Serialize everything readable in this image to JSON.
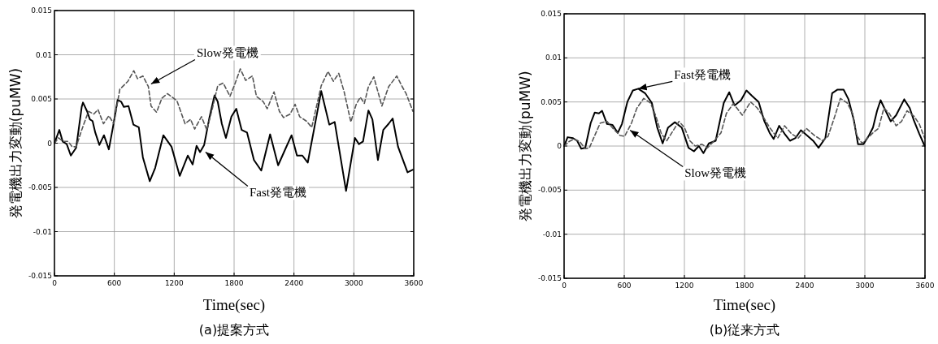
{
  "chart_data": [
    {
      "type": "line",
      "title": "(a)提案方式",
      "xlabel": "Time(sec)",
      "ylabel": "発電機出力変動(puMW)",
      "xlim": [
        0,
        3600
      ],
      "xticks": [
        0,
        600,
        1200,
        1800,
        2400,
        3000,
        3600
      ],
      "ylim": [
        -0.015,
        0.015
      ],
      "yticks": [
        -0.015,
        -0.01,
        -0.005,
        0,
        0.005,
        0.01,
        0.015
      ],
      "grid": true,
      "annotations": [
        {
          "text": "Slow発電機",
          "x": 968,
          "y": 0.0067
        },
        {
          "text": "Fast発電機",
          "x": 1514,
          "y": -0.001
        }
      ],
      "series": [
        {
          "color": "#000000",
          "line_style": "solid",
          "x": [
            0,
            49,
            82,
            123,
            164,
            218,
            273,
            286,
            327,
            355,
            382,
            409,
            450,
            496,
            545,
            586,
            633,
            668,
            695,
            742,
            791,
            845,
            886,
            955,
            1009,
            1091,
            1173,
            1255,
            1336,
            1385,
            1424,
            1459,
            1500,
            1555,
            1604,
            1636,
            1677,
            1718,
            1773,
            1822,
            1876,
            1930,
            1999,
            2072,
            2161,
            2241,
            2308,
            2376,
            2430,
            2484,
            2538,
            2605,
            2673,
            2754,
            2808,
            2849,
            2922,
            3011,
            3051,
            3092,
            3146,
            3186,
            3241,
            3295,
            3349,
            3389,
            3443,
            3538,
            3592
          ],
          "values": [
            0,
            0.0015,
            0.0002,
            -0.0001,
            -0.0014,
            -0.0005,
            0.0041,
            0.0046,
            0.0036,
            0.0027,
            0.0025,
            0.0012,
            -0.0002,
            0.0009,
            -0.0007,
            0.0018,
            0.0049,
            0.0047,
            0.0041,
            0.0042,
            0.0021,
            0.0018,
            -0.0016,
            -0.0043,
            -0.0028,
            0.0009,
            -0.0004,
            -0.0037,
            -0.0014,
            -0.0024,
            -0.0003,
            -0.001,
            -0.0002,
            0.003,
            0.0054,
            0.0047,
            0.0022,
            0.0006,
            0.003,
            0.0039,
            0.0015,
            0.0012,
            -0.0019,
            -0.0031,
            0.001,
            -0.0025,
            -0.0008,
            0.0009,
            -0.0014,
            -0.0014,
            -0.0022,
            0.0018,
            0.0059,
            0.0021,
            0.0024,
            -0.0004,
            -0.0054,
            0.0006,
            -0.0001,
            0.0002,
            0.0037,
            0.0027,
            -0.0019,
            0.0015,
            0.0022,
            0.0028,
            -0.0004,
            -0.0033,
            -0.003
          ]
        },
        {
          "color": "#555555",
          "line_style": "dashed",
          "x": [
            0,
            41,
            87,
            136,
            177,
            218,
            273,
            341,
            395,
            436,
            491,
            545,
            595,
            655,
            736,
            795,
            832,
            886,
            941,
            968,
            1023,
            1077,
            1132,
            1227,
            1309,
            1364,
            1405,
            1473,
            1527,
            1582,
            1636,
            1691,
            1759,
            1808,
            1862,
            1916,
            1984,
            2024,
            2092,
            2132,
            2200,
            2254,
            2295,
            2362,
            2411,
            2457,
            2524,
            2578,
            2673,
            2741,
            2795,
            2849,
            2903,
            2970,
            3024,
            3065,
            3105,
            3146,
            3200,
            3281,
            3349,
            3430,
            3484,
            3524,
            3592
          ],
          "values": [
            0,
            0.0006,
            0.0002,
            0.0002,
            -0.0004,
            -0.0004,
            0.0015,
            0.0036,
            0.0033,
            0.0038,
            0.0022,
            0.0031,
            0.0022,
            0.0061,
            0.007,
            0.0082,
            0.0073,
            0.0076,
            0.0064,
            0.0042,
            0.0035,
            0.0051,
            0.0056,
            0.0048,
            0.0022,
            0.0027,
            0.0016,
            0.003,
            0.0015,
            0.0039,
            0.0065,
            0.0068,
            0.0053,
            0.0067,
            0.0084,
            0.0071,
            0.0076,
            0.0053,
            0.0047,
            0.0039,
            0.0058,
            0.0036,
            0.0029,
            0.0033,
            0.0044,
            0.003,
            0.0025,
            0.0018,
            0.0065,
            0.0081,
            0.007,
            0.0079,
            0.0058,
            0.0024,
            0.0044,
            0.0052,
            0.0045,
            0.0064,
            0.0075,
            0.0042,
            0.0064,
            0.0076,
            0.0064,
            0.0056,
            0.0036
          ]
        }
      ]
    },
    {
      "type": "line",
      "title": "(b)従来方式",
      "xlabel": "Time(sec)",
      "ylabel": "発電機出力変動(puMW)",
      "xlim": [
        0,
        3600
      ],
      "xticks": [
        0,
        600,
        1200,
        1800,
        2400,
        3000,
        3600
      ],
      "ylim": [
        -0.015,
        0.015
      ],
      "yticks": [
        -0.015,
        -0.01,
        -0.005,
        0,
        0.005,
        0.01,
        0.015
      ],
      "grid": true,
      "annotations": [
        {
          "text": "Fast発電機",
          "x": 740,
          "y": 0.0065
        },
        {
          "text": "Slow発電機",
          "x": 658,
          "y": 0.0018
        }
      ],
      "series": [
        {
          "color": "#000000",
          "line_style": "solid",
          "x": [
            0,
            35,
            89,
            130,
            171,
            211,
            265,
            306,
            347,
            379,
            428,
            482,
            536,
            577,
            631,
            686,
            740,
            807,
            875,
            929,
            983,
            1037,
            1105,
            1173,
            1241,
            1295,
            1344,
            1390,
            1444,
            1512,
            1593,
            1647,
            1701,
            1765,
            1819,
            1873,
            1941,
            1995,
            2050,
            2090,
            2145,
            2199,
            2253,
            2308,
            2362,
            2403,
            2484,
            2538,
            2606,
            2674,
            2728,
            2788,
            2837,
            2891,
            2932,
            2986,
            3041,
            3081,
            3122,
            3157,
            3203,
            3258,
            3312,
            3393,
            3448,
            3489,
            3543,
            3597
          ],
          "values": [
            0,
            0.001,
            0.0009,
            0.0006,
            -0.0003,
            -0.0002,
            0.0026,
            0.0038,
            0.0037,
            0.004,
            0.0025,
            0.0024,
            0.0015,
            0.0025,
            0.005,
            0.0063,
            0.0065,
            0.006,
            0.0049,
            0.0021,
            0.0003,
            0.0021,
            0.0027,
            0.0021,
            -0.0002,
            -0.0006,
            0,
            -0.0008,
            0.0003,
            0.0006,
            0.0049,
            0.0061,
            0.0046,
            0.0052,
            0.0063,
            0.0057,
            0.005,
            0.0029,
            0.0015,
            0.0008,
            0.0023,
            0.0014,
            0.0006,
            0.0009,
            0.0018,
            0.0014,
            0.0006,
            -0.0002,
            0.0009,
            0.006,
            0.0064,
            0.0064,
            0.0053,
            0.0029,
            0.0002,
            0.0002,
            0.0012,
            0.0021,
            0.004,
            0.0052,
            0.0041,
            0.0028,
            0.0035,
            0.0053,
            0.0043,
            0.0029,
            0.0014,
            0
          ]
        },
        {
          "color": "#555555",
          "line_style": "dashed",
          "x": [
            0,
            49,
            98,
            157,
            211,
            252,
            306,
            360,
            428,
            495,
            558,
            604,
            672,
            726,
            794,
            861,
            915,
            970,
            1024,
            1091,
            1146,
            1200,
            1254,
            1308,
            1376,
            1430,
            1498,
            1565,
            1619,
            1687,
            1724,
            1778,
            1860,
            1928,
            1982,
            2050,
            2131,
            2199,
            2267,
            2335,
            2416,
            2497,
            2579,
            2633,
            2701,
            2756,
            2823,
            2878,
            2918,
            2973,
            3027,
            3081,
            3136,
            3190,
            3244,
            3312,
            3366,
            3421,
            3489,
            3543,
            3597
          ],
          "values": [
            0,
            0.0005,
            0.0008,
            0.0005,
            -0.0003,
            -0.0002,
            0.0012,
            0.0026,
            0.0028,
            0.0019,
            0.0012,
            0.0011,
            0.0026,
            0.0043,
            0.0054,
            0.0049,
            0.0034,
            0.0014,
            0.0006,
            0.0018,
            0.0028,
            0.0021,
            0.0006,
            0,
            0.0002,
            -0.0002,
            0.0006,
            0.0015,
            0.0037,
            0.0048,
            0.0043,
            0.0035,
            0.005,
            0.0043,
            0.0034,
            0.0021,
            0.0009,
            0.0023,
            0.0014,
            0.0009,
            0.002,
            0.0012,
            0.0006,
            0.0011,
            0.0034,
            0.0054,
            0.0049,
            0.0037,
            0.0012,
            0.0003,
            0.0009,
            0.0015,
            0.002,
            0.0043,
            0.0037,
            0.0023,
            0.0028,
            0.004,
            0.0034,
            0.0025,
            0.0009
          ]
        }
      ]
    }
  ]
}
